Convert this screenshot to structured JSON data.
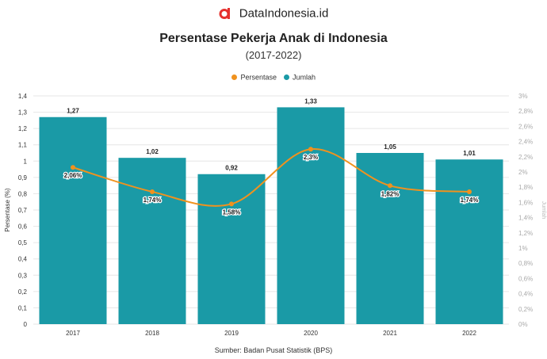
{
  "brand": {
    "name": "DataIndonesia.id"
  },
  "colors": {
    "bar": "#1a9aa6",
    "line": "#f0921e",
    "brand": "#e5312e",
    "grid": "#e6e6e6"
  },
  "source": "Sumber: Badan Pusat Statistik (BPS)",
  "legend": {
    "line_label": "Persentase",
    "bar_label": "Jumlah"
  },
  "chart_data": {
    "type": "bar",
    "title": "Persentase Pekerja Anak di Indonesia",
    "subtitle": "(2017-2022)",
    "categories": [
      "2017",
      "2018",
      "2019",
      "2020",
      "2021",
      "2022"
    ],
    "series": [
      {
        "name": "Jumlah",
        "type": "bar",
        "axis": "left",
        "values": [
          1.27,
          1.02,
          0.92,
          1.33,
          1.05,
          1.01
        ],
        "labels": [
          "1,27",
          "1,02",
          "0,92",
          "1,33",
          "1,05",
          "1,01"
        ]
      },
      {
        "name": "Persentase",
        "type": "line",
        "axis": "right",
        "values": [
          2.06,
          1.74,
          1.58,
          2.3,
          1.82,
          1.74
        ],
        "labels": [
          "2,06%",
          "1,74%",
          "1,58%",
          "2,3%",
          "1,82%",
          "1,74%"
        ]
      }
    ],
    "ylabel": "Persentase (%)",
    "ylim": [
      0,
      1.4
    ],
    "yticks": [
      "0",
      "0,1",
      "0,2",
      "0,3",
      "0,4",
      "0,5",
      "0,6",
      "0,7",
      "0,8",
      "0,9",
      "1",
      "1,1",
      "1,2",
      "1,3",
      "1,4"
    ],
    "y2lim": [
      0,
      3
    ],
    "y2ticks": [
      "0%",
      "0,2%",
      "0,4%",
      "0,6%",
      "0,8%",
      "1%",
      "1,2%",
      "1,4%",
      "1,6%",
      "1,8%",
      "2%",
      "2,2%",
      "2,4%",
      "2,6%",
      "2,8%",
      "3%"
    ],
    "y2label": "Jumlah",
    "legend_position": "top",
    "grid": true
  }
}
